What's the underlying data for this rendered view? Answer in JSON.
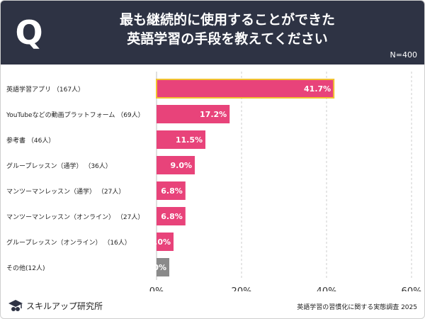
{
  "header": {
    "q_label": "Q",
    "title": "最も継続的に使用することができた\n英語学習の手段を教えてください",
    "sample_size": "N=400"
  },
  "footer": {
    "logo_text": "スキルアップ研究所",
    "source": "英語学習の習慣化に関する実態調査 2025"
  },
  "colors": {
    "header_bg": "#2e3344",
    "bar": "#e8437a",
    "bar_highlight_border": "#f2c230",
    "bar_other": "#8a8a8a",
    "grid": "#cccccc"
  },
  "chart_data": {
    "type": "bar",
    "orientation": "horizontal",
    "categories": [
      "英語学習アプリ （167人）",
      "YouTubeなどの動画プラットフォーム （69人）",
      "参考書 （46人）",
      "グループレッスン（通学） （36人）",
      "マンツーマンレッスン（通学） （27人）",
      "マンツーマンレッスン（オンライン） （27人）",
      "グループレッスン（オンライン） （16人）",
      "その他(12人)"
    ],
    "values": [
      41.7,
      17.2,
      11.5,
      9.0,
      6.8,
      6.8,
      4.0,
      3.0
    ],
    "value_labels": [
      "41.7%",
      "17.2%",
      "11.5%",
      "9.0%",
      "6.8%",
      "6.8%",
      "4.0%",
      "3.0%"
    ],
    "xlim": [
      0,
      60
    ],
    "xticks": [
      0,
      20,
      40,
      60
    ],
    "xtick_labels": [
      "0%",
      "20%",
      "40%",
      "60%"
    ],
    "grid": true,
    "highlight_index": 0,
    "other_index": 7
  }
}
